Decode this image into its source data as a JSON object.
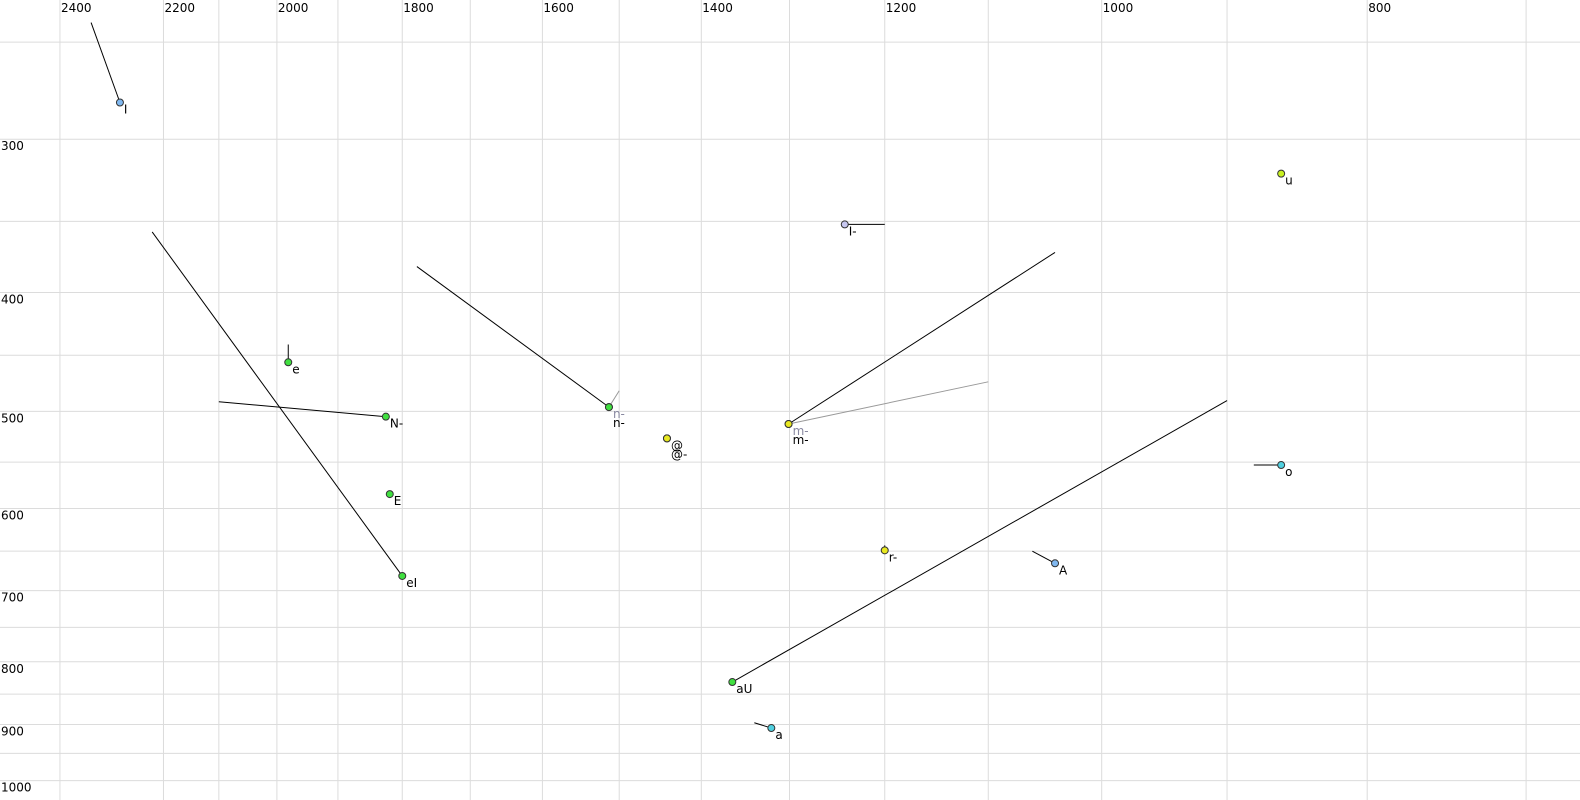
{
  "chart_data": {
    "type": "formant-scatter",
    "xscale": "log",
    "yscale": "log",
    "grid": true,
    "xlim": [
      2524,
      669
    ],
    "ylim": [
      231,
      1037
    ],
    "xticks": [
      2400,
      2200,
      2000,
      1800,
      1600,
      1400,
      1200,
      1000,
      800
    ],
    "xminor": [
      2100,
      1900,
      1700,
      1500,
      1300,
      1100,
      900,
      700
    ],
    "yticks": [
      300,
      400,
      500,
      600,
      700,
      800,
      900,
      1000
    ],
    "yminor": [
      250,
      350,
      450,
      550,
      650,
      750,
      850,
      950
    ],
    "points": [
      {
        "label": "I",
        "x": 2282,
        "y": 280,
        "color": "#80b8f0",
        "tail_x": 2338,
        "tail_y": 241
      },
      {
        "label": "e",
        "x": 1981,
        "y": 456,
        "color": "#40e040",
        "tail_x": 1981,
        "tail_y": 441
      },
      {
        "label": "N-",
        "x": 1825,
        "y": 505,
        "color": "#40e040",
        "tail_x": 2100,
        "tail_y": 491
      },
      {
        "label": "E",
        "x": 1819,
        "y": 584,
        "color": "#40e040"
      },
      {
        "label": "eI",
        "x": 1800,
        "y": 681,
        "color": "#40e040",
        "tail_x": 2221,
        "tail_y": 357
      },
      {
        "label": "n-",
        "x": 1513,
        "y": 496,
        "color": "#40e040",
        "tail_x": 1500,
        "tail_y": 481,
        "label_color": "#8888a0",
        "tail_color": "#999999"
      },
      {
        "label": "n-",
        "x": 1513,
        "y": 496,
        "color": "#40e040",
        "tail_x": 1778,
        "tail_y": 381
      },
      {
        "label": "@",
        "x": 1441,
        "y": 526,
        "color": "#e8e820"
      },
      {
        "label": "@-",
        "x": 1441,
        "y": 526,
        "color": "#e8e820"
      },
      {
        "label": "m-",
        "x": 1301,
        "y": 512,
        "color": "#e8e820",
        "tail_x": 1100,
        "tail_y": 473,
        "label_color": "#8888a0",
        "tail_color": "#999999"
      },
      {
        "label": "m-",
        "x": 1301,
        "y": 512,
        "color": "#e8e820",
        "tail_x": 1040,
        "tail_y": 371
      },
      {
        "label": "I-",
        "x": 1241,
        "y": 352,
        "color": "#c8c8f0",
        "tail_x": 1200,
        "tail_y": 352
      },
      {
        "label": "u",
        "x": 860,
        "y": 320,
        "color": "#c8f020"
      },
      {
        "label": "r-",
        "x": 1200,
        "y": 649,
        "color": "#e8e820",
        "tail_x": 1200,
        "tail_y": 643
      },
      {
        "label": "A",
        "x": 1040,
        "y": 665,
        "color": "#80b8f0",
        "tail_x": 1060,
        "tail_y": 650
      },
      {
        "label": "o",
        "x": 860,
        "y": 553,
        "color": "#50d0e0",
        "tail_x": 880,
        "tail_y": 553
      },
      {
        "label": "aU",
        "x": 1364,
        "y": 831,
        "color": "#40e040",
        "tail_x": 900,
        "tail_y": 490
      },
      {
        "label": "a",
        "x": 1320,
        "y": 906,
        "color": "#50d0e0",
        "tail_x": 1339,
        "tail_y": 897
      }
    ]
  }
}
